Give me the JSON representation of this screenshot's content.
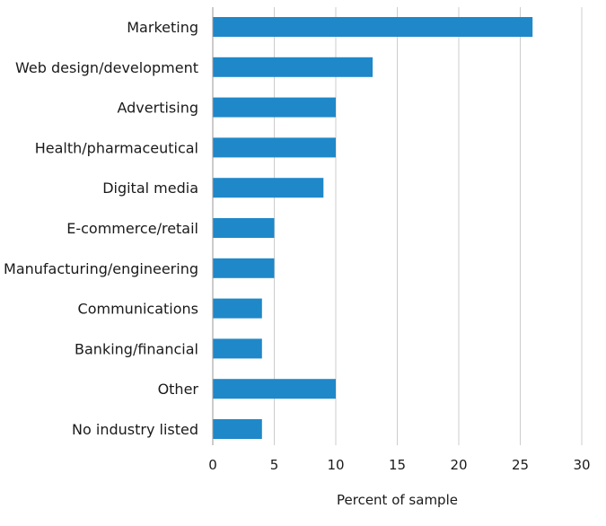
{
  "chart_data": {
    "type": "bar",
    "orientation": "horizontal",
    "categories": [
      "Marketing",
      "Web design/development",
      "Advertising",
      "Health/pharmaceutical",
      "Digital media",
      "E-commerce/retail",
      "Manufacturing/engineering",
      "Communications",
      "Banking/financial",
      "Other",
      "No industry listed"
    ],
    "values": [
      26,
      13,
      10,
      10,
      9,
      5,
      5,
      4,
      4,
      10,
      4
    ],
    "xlabel": "Percent of sample",
    "ylabel": "",
    "xlim": [
      0,
      30
    ],
    "xticks": [
      0,
      5,
      10,
      15,
      20,
      25,
      30
    ],
    "grid": "vertical",
    "bar_color": "#1f88c9"
  }
}
